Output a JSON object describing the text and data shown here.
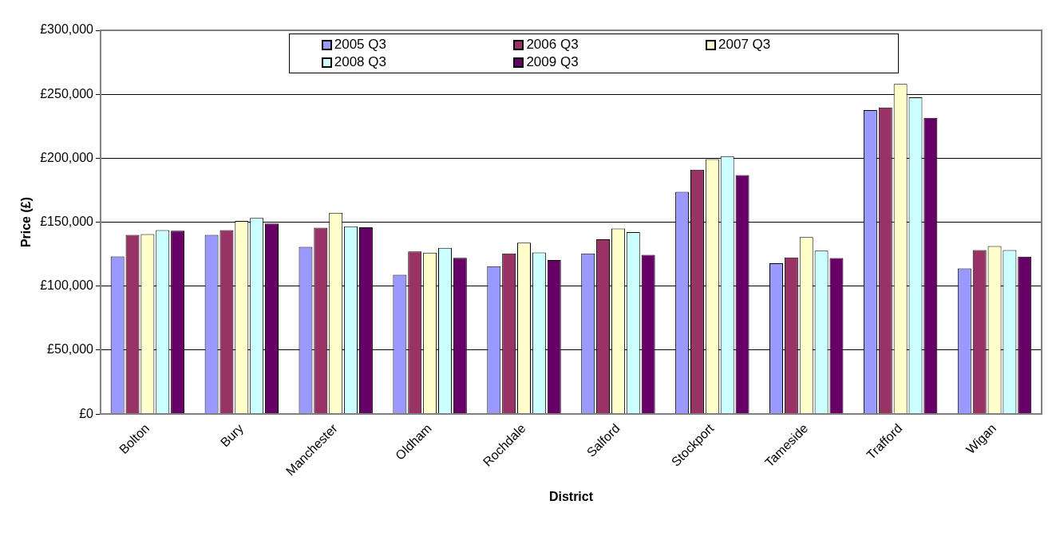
{
  "chart_data": {
    "type": "bar",
    "xlabel": "District",
    "ylabel": "Price (£)",
    "categories": [
      "Bolton",
      "Bury",
      "Manchester",
      "Oldham",
      "Rochdale",
      "Salford",
      "Stockport",
      "Tameside",
      "Trafford",
      "Wigan"
    ],
    "series": [
      {
        "name": "2005 Q3",
        "color": "#9999ff",
        "values": [
          123300,
          140000,
          130700,
          108900,
          115600,
          125600,
          173800,
          118000,
          237600,
          113800
        ]
      },
      {
        "name": "2006 Q3",
        "color": "#993366",
        "values": [
          140000,
          143800,
          145600,
          127100,
          125600,
          136700,
          191100,
          122400,
          239600,
          128200
        ]
      },
      {
        "name": "2007 Q3",
        "color": "#ffffcc",
        "values": [
          140700,
          151000,
          157300,
          126200,
          134000,
          145100,
          199300,
          138400,
          258000,
          131300
        ]
      },
      {
        "name": "2008 Q3",
        "color": "#ccffff",
        "values": [
          143800,
          153300,
          146700,
          130000,
          126400,
          142200,
          201600,
          127800,
          247600,
          128200
        ]
      },
      {
        "name": "2009 Q3",
        "color": "#660066",
        "values": [
          143300,
          149000,
          146000,
          122200,
          120400,
          124400,
          186900,
          122000,
          231600,
          123100
        ]
      }
    ],
    "ylim": [
      0,
      300000
    ],
    "yticks": [
      {
        "value": 0,
        "label": "£0"
      },
      {
        "value": 50000,
        "label": "£50,000"
      },
      {
        "value": 100000,
        "label": "£100,000"
      },
      {
        "value": 150000,
        "label": "£150,000"
      },
      {
        "value": 200000,
        "label": "£200,000"
      },
      {
        "value": 250000,
        "label": "£250,000"
      },
      {
        "value": 300000,
        "label": "£300,000"
      }
    ],
    "grid": "y",
    "legend": "top"
  }
}
